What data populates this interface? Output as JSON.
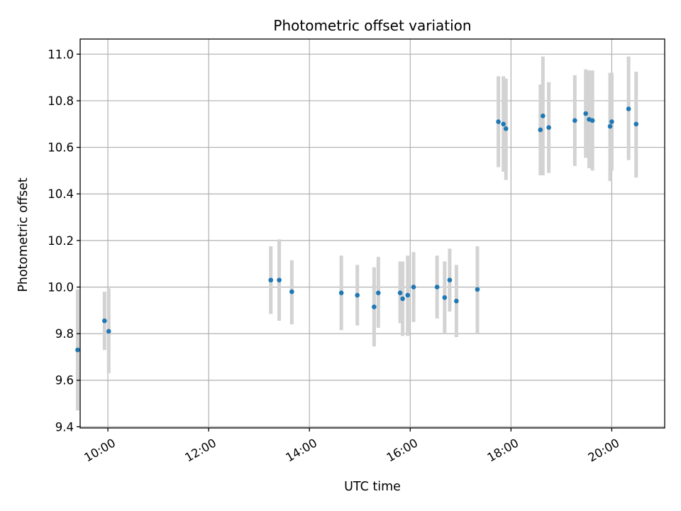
{
  "chart_data": {
    "type": "scatter",
    "title": "Photometric offset variation",
    "xlabel": "UTC time",
    "ylabel": "Photometric offset",
    "xlim": [
      "09:27",
      "21:03"
    ],
    "ylim": [
      9.395,
      11.065
    ],
    "xticks": [
      "10:00",
      "12:00",
      "14:00",
      "16:00",
      "18:00",
      "20:00"
    ],
    "yticks": [
      9.4,
      9.6,
      9.8,
      10.0,
      10.2,
      10.4,
      10.6,
      10.8,
      11.0
    ],
    "ytick_labels": [
      "9.4",
      "9.6",
      "9.8",
      "10.0",
      "10.2",
      "10.4",
      "10.6",
      "10.8",
      "11.0"
    ],
    "grid": true,
    "marker_color": "#1f77b4",
    "errorbar_color": "#d3d3d3",
    "series": [
      {
        "points": [
          {
            "t": "09:24",
            "y": 9.73,
            "lo": 9.47,
            "hi": 9.99
          },
          {
            "t": "09:56",
            "y": 9.855,
            "lo": 9.73,
            "hi": 9.98
          },
          {
            "t": "10:01",
            "y": 9.81,
            "lo": 9.63,
            "hi": 9.995
          },
          {
            "t": "13:14",
            "y": 10.03,
            "lo": 9.885,
            "hi": 10.175
          },
          {
            "t": "13:24",
            "y": 10.03,
            "lo": 9.855,
            "hi": 10.205
          },
          {
            "t": "13:39",
            "y": 9.98,
            "lo": 9.84,
            "hi": 10.115
          },
          {
            "t": "14:38",
            "y": 9.975,
            "lo": 9.815,
            "hi": 10.135
          },
          {
            "t": "14:57",
            "y": 9.965,
            "lo": 9.835,
            "hi": 10.095
          },
          {
            "t": "15:17",
            "y": 9.915,
            "lo": 9.745,
            "hi": 10.085
          },
          {
            "t": "15:22",
            "y": 9.975,
            "lo": 9.825,
            "hi": 10.13
          },
          {
            "t": "15:48",
            "y": 9.975,
            "lo": 9.845,
            "hi": 10.11
          },
          {
            "t": "15:51",
            "y": 9.95,
            "lo": 9.79,
            "hi": 10.11
          },
          {
            "t": "15:57",
            "y": 9.965,
            "lo": 9.79,
            "hi": 10.135
          },
          {
            "t": "16:04",
            "y": 10.0,
            "lo": 9.85,
            "hi": 10.15
          },
          {
            "t": "16:32",
            "y": 10.0,
            "lo": 9.865,
            "hi": 10.135
          },
          {
            "t": "16:41",
            "y": 9.955,
            "lo": 9.8,
            "hi": 10.11
          },
          {
            "t": "16:47",
            "y": 10.03,
            "lo": 9.895,
            "hi": 10.165
          },
          {
            "t": "16:55",
            "y": 9.94,
            "lo": 9.785,
            "hi": 10.095
          },
          {
            "t": "17:20",
            "y": 9.99,
            "lo": 9.8,
            "hi": 10.175
          },
          {
            "t": "17:45",
            "y": 10.71,
            "lo": 10.515,
            "hi": 10.905
          },
          {
            "t": "17:51",
            "y": 10.7,
            "lo": 10.495,
            "hi": 10.905
          },
          {
            "t": "17:54",
            "y": 10.68,
            "lo": 10.46,
            "hi": 10.895
          },
          {
            "t": "18:35",
            "y": 10.675,
            "lo": 10.48,
            "hi": 10.87
          },
          {
            "t": "18:38",
            "y": 10.735,
            "lo": 10.48,
            "hi": 10.99
          },
          {
            "t": "18:45",
            "y": 10.685,
            "lo": 10.49,
            "hi": 10.88
          },
          {
            "t": "19:16",
            "y": 10.715,
            "lo": 10.52,
            "hi": 10.91
          },
          {
            "t": "19:29",
            "y": 10.745,
            "lo": 10.555,
            "hi": 10.935
          },
          {
            "t": "19:33",
            "y": 10.72,
            "lo": 10.51,
            "hi": 10.93
          },
          {
            "t": "19:37",
            "y": 10.715,
            "lo": 10.5,
            "hi": 10.93
          },
          {
            "t": "19:58",
            "y": 10.69,
            "lo": 10.455,
            "hi": 10.92
          },
          {
            "t": "20:00",
            "y": 10.71,
            "lo": 10.5,
            "hi": 10.92
          },
          {
            "t": "20:20",
            "y": 10.765,
            "lo": 10.545,
            "hi": 10.99
          },
          {
            "t": "20:29",
            "y": 10.7,
            "lo": 10.47,
            "hi": 10.925
          }
        ]
      }
    ]
  }
}
